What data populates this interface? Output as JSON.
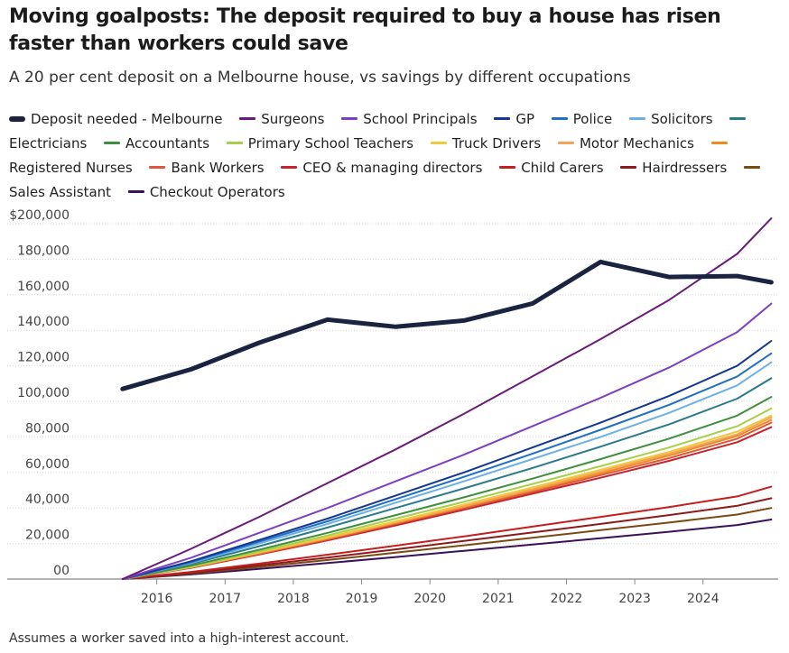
{
  "title": "Moving goalposts: The deposit required to buy a house has risen faster than workers could save",
  "subtitle": "A 20 per cent deposit on a Melbourne house, vs savings by different occupations",
  "footnote": "Assumes a worker saved into a high-interest account.",
  "chart_data": {
    "type": "line",
    "x": [
      2015.5,
      2016.5,
      2017.5,
      2018.5,
      2019.5,
      2020.5,
      2021.5,
      2022.5,
      2023.5,
      2024.5,
      2025
    ],
    "x_ticks": [
      "2016",
      "2017",
      "2018",
      "2019",
      "2020",
      "2021",
      "2022",
      "2023",
      "2024"
    ],
    "y_ticks": [
      "00",
      "20,000",
      "40,000",
      "60,000",
      "80,000",
      "100,000",
      "120,000",
      "140,000",
      "160,000",
      "180,000",
      "$200,000"
    ],
    "ylim": [
      0,
      200000
    ],
    "xlim": [
      2015.0,
      2025.1
    ],
    "grid": "horizontal",
    "legend_placement": "top",
    "series": [
      {
        "name": "Deposit needed - Melbourne",
        "color": "#1a2340",
        "width": 5,
        "values": [
          107000,
          118000,
          133000,
          146000,
          142000,
          145500,
          155000,
          178500,
          170000,
          170500,
          167000
        ]
      },
      {
        "name": "Surgeons",
        "color": "#6a1b7a",
        "width": 2,
        "values": [
          0,
          17000,
          35000,
          54000,
          73000,
          93000,
          114000,
          135000,
          157000,
          183000,
          203000
        ]
      },
      {
        "name": "School Principals",
        "color": "#7b3fc4",
        "width": 2,
        "values": [
          0,
          12000,
          26000,
          40000,
          55000,
          70000,
          86000,
          102000,
          119000,
          139000,
          155000
        ]
      },
      {
        "name": "GP",
        "color": "#13388f",
        "width": 2,
        "values": [
          0,
          10000,
          22000,
          34000,
          47000,
          60000,
          74000,
          88000,
          103000,
          120000,
          134000
        ]
      },
      {
        "name": "Police",
        "color": "#1f6fc5",
        "width": 2,
        "values": [
          0,
          9500,
          21000,
          32500,
          45000,
          57500,
          70500,
          84000,
          98000,
          114000,
          127000
        ]
      },
      {
        "name": "Solicitors",
        "color": "#6cb0e6",
        "width": 2,
        "values": [
          0,
          9000,
          20000,
          31000,
          43000,
          55000,
          67500,
          80000,
          93500,
          109000,
          122000
        ]
      },
      {
        "name": "Electricians",
        "color": "#2b7a8c",
        "width": 2,
        "values": [
          0,
          8500,
          18500,
          29000,
          40000,
          51000,
          62500,
          74500,
          87000,
          101500,
          113000
        ]
      },
      {
        "name": "Accountants",
        "color": "#3f8f3f",
        "width": 2,
        "values": [
          0,
          7500,
          16500,
          26000,
          36000,
          46000,
          56500,
          67500,
          79000,
          92000,
          102500
        ]
      },
      {
        "name": "Primary School Teachers",
        "color": "#a8cf4a",
        "width": 2,
        "values": [
          0,
          7000,
          15500,
          24500,
          34000,
          43500,
          53500,
          63500,
          74000,
          86000,
          96000
        ]
      },
      {
        "name": "Truck Drivers",
        "color": "#f0c93a",
        "width": 2,
        "values": [
          0,
          6800,
          15000,
          23500,
          32500,
          42000,
          51500,
          61500,
          71500,
          83000,
          92000
        ]
      },
      {
        "name": "Motor Mechanics",
        "color": "#f4a45a",
        "width": 2,
        "values": [
          0,
          6700,
          14800,
          23000,
          32000,
          41000,
          50500,
          60500,
          70500,
          81500,
          91000
        ]
      },
      {
        "name": "Registered Nurses",
        "color": "#f08a1e",
        "width": 2,
        "values": [
          0,
          6600,
          14500,
          22800,
          31500,
          40500,
          50000,
          59500,
          69500,
          80500,
          89500
        ]
      },
      {
        "name": "Bank Workers",
        "color": "#e0563a",
        "width": 2,
        "values": [
          0,
          6500,
          14200,
          22300,
          31000,
          40000,
          49000,
          58500,
          68000,
          79000,
          88000
        ]
      },
      {
        "name": "CEO & managing directors",
        "color": "#c6242c",
        "width": 2,
        "values": [
          0,
          6300,
          13800,
          21800,
          30200,
          39000,
          48000,
          57000,
          66500,
          77000,
          85500
        ]
      },
      {
        "name": "Child Carers",
        "color": "#c41e1e",
        "width": 2,
        "values": [
          0,
          4000,
          8700,
          13700,
          18800,
          24000,
          29500,
          35000,
          40500,
          46500,
          52000
        ]
      },
      {
        "name": "Hairdressers",
        "color": "#8c1a1a",
        "width": 2,
        "values": [
          0,
          3500,
          7700,
          12100,
          16700,
          21400,
          26200,
          31000,
          36000,
          41200,
          45500
        ]
      },
      {
        "name": "Sales Assistant",
        "color": "#7a4a12",
        "width": 2,
        "values": [
          0,
          3100,
          6800,
          10700,
          14800,
          19000,
          23200,
          27500,
          31800,
          36300,
          40000
        ]
      },
      {
        "name": "Checkout Operators",
        "color": "#3a1259",
        "width": 2,
        "values": [
          0,
          2600,
          5700,
          9000,
          12400,
          15900,
          19400,
          23000,
          26600,
          30400,
          33500
        ]
      }
    ]
  }
}
